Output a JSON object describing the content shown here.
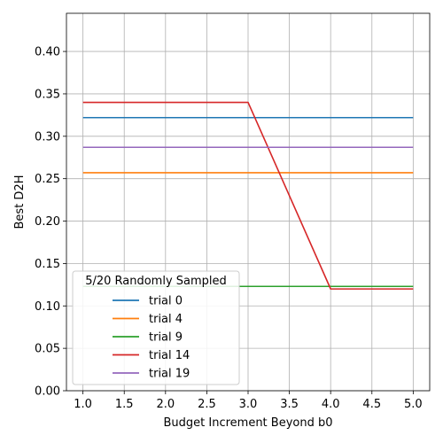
{
  "chart_data": {
    "type": "line",
    "title": "",
    "xlabel": "Budget Increment Beyond b0",
    "ylabel": "Best D2H",
    "xlim": [
      0.8,
      5.2
    ],
    "ylim": [
      0.0,
      0.445
    ],
    "xticks": [
      1.0,
      1.5,
      2.0,
      2.5,
      3.0,
      3.5,
      4.0,
      4.5,
      5.0
    ],
    "xtick_labels": [
      "1.0",
      "1.5",
      "2.0",
      "2.5",
      "3.0",
      "3.5",
      "4.0",
      "4.5",
      "5.0"
    ],
    "yticks": [
      0.0,
      0.05,
      0.1,
      0.15,
      0.2,
      0.25,
      0.3,
      0.35,
      0.4
    ],
    "ytick_labels": [
      "0.00",
      "0.05",
      "0.10",
      "0.15",
      "0.20",
      "0.25",
      "0.30",
      "0.35",
      "0.40"
    ],
    "grid": true,
    "legend": {
      "title": "5/20 Randomly Sampled",
      "placement": "lower-left"
    },
    "x": [
      1.0,
      2.0,
      3.0,
      4.0,
      5.0
    ],
    "series": [
      {
        "name": "trial 0",
        "color": "#1f77b4",
        "values": [
          0.322,
          0.322,
          0.322,
          0.322,
          0.322
        ]
      },
      {
        "name": "trial 4",
        "color": "#ff7f0e",
        "values": [
          0.257,
          0.257,
          0.257,
          0.257,
          0.257
        ]
      },
      {
        "name": "trial 9",
        "color": "#2ca02c",
        "values": [
          0.123,
          0.123,
          0.123,
          0.123,
          0.123
        ]
      },
      {
        "name": "trial 14",
        "color": "#d62728",
        "values": [
          0.34,
          0.34,
          0.34,
          0.12,
          0.12
        ]
      },
      {
        "name": "trial 19",
        "color": "#9467bd",
        "values": [
          0.287,
          0.287,
          0.287,
          0.287,
          0.287
        ]
      }
    ]
  }
}
